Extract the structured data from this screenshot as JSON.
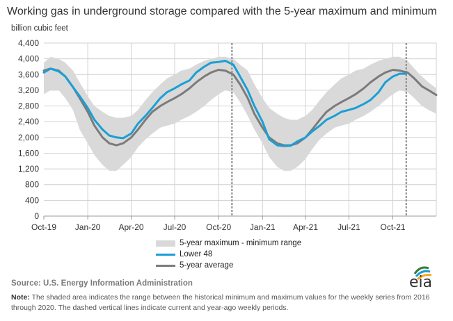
{
  "header": {
    "title": "Working gas in underground  storage compared with the 5-year maximum and minimum",
    "units": "billion cubic feet"
  },
  "legend": {
    "range_label": "5-year maximum - minimum range",
    "lower48_label": "Lower 48",
    "avg_label": "5-year average"
  },
  "footer": {
    "source": "Source:  U.S. Energy Information Administration",
    "note_label": "Note:",
    "note_text": " The shaded area indicates the range between the historical minimum and maximum values for the weekly series from 2016 through 2020. The dashed vertical lines indicate current and year-ago weekly periods.",
    "logo_text": "eia"
  },
  "colors": {
    "range": "#d9d9d9",
    "lower48": "#1a9fd5",
    "average": "#7b7b7b",
    "grid": "#d0d0d0",
    "dashed": "#888888"
  },
  "chart_data": {
    "type": "area",
    "ylabel": "billion cubic feet",
    "ylim": [
      0,
      4400
    ],
    "yticks": [
      0,
      400,
      800,
      1200,
      1600,
      2000,
      2400,
      2800,
      3200,
      3600,
      4000,
      4400
    ],
    "ytick_labels": [
      "0",
      "400",
      "800",
      "1,200",
      "1,600",
      "2,000",
      "2,400",
      "2,800",
      "3,200",
      "3,600",
      "4,000",
      "4,400"
    ],
    "xlim": [
      "2019-10-01",
      "2021-12-31"
    ],
    "xticks": [
      "2019-10-01",
      "2020-01-01",
      "2020-04-01",
      "2020-07-01",
      "2020-10-01",
      "2021-01-01",
      "2021-04-01",
      "2021-07-01",
      "2021-10-01"
    ],
    "xtick_labels": [
      "Oct-19",
      "Jan-20",
      "Apr-20",
      "Jul-20",
      "Oct-20",
      "Jan-21",
      "Apr-21",
      "Jul-21",
      "Oct-21"
    ],
    "grid": true,
    "legend_position": "bottom-center",
    "dashed_lines": [
      "2020-10-29",
      "2021-10-29"
    ],
    "series": [
      {
        "name": "5-year maximum - minimum range",
        "kind": "band",
        "x": [
          "2019-10-01",
          "2019-10-15",
          "2019-11-01",
          "2019-11-15",
          "2019-12-01",
          "2019-12-15",
          "2020-01-01",
          "2020-01-15",
          "2020-02-01",
          "2020-02-15",
          "2020-03-01",
          "2020-03-15",
          "2020-04-01",
          "2020-04-15",
          "2020-05-01",
          "2020-05-15",
          "2020-06-01",
          "2020-06-15",
          "2020-07-01",
          "2020-07-15",
          "2020-08-01",
          "2020-08-15",
          "2020-09-01",
          "2020-09-15",
          "2020-10-01",
          "2020-10-15",
          "2020-11-01",
          "2020-11-15",
          "2020-12-01",
          "2020-12-15",
          "2021-01-01",
          "2021-01-15",
          "2021-02-01",
          "2021-02-15",
          "2021-03-01",
          "2021-03-15",
          "2021-04-01",
          "2021-04-15",
          "2021-05-01",
          "2021-05-15",
          "2021-06-01",
          "2021-06-15",
          "2021-07-01",
          "2021-07-15",
          "2021-08-01",
          "2021-08-15",
          "2021-09-01",
          "2021-09-15",
          "2021-10-01",
          "2021-10-15",
          "2021-11-01",
          "2021-11-15",
          "2021-12-01",
          "2021-12-15",
          "2021-12-31"
        ],
        "min": [
          3100,
          3200,
          3200,
          3000,
          2700,
          2200,
          1850,
          1550,
          1300,
          1150,
          1150,
          1300,
          1500,
          1750,
          1950,
          2100,
          2250,
          2300,
          2350,
          2450,
          2550,
          2650,
          2800,
          2950,
          3100,
          3200,
          3150,
          2900,
          2550,
          2200,
          1850,
          1500,
          1250,
          1150,
          1150,
          1250,
          1450,
          1700,
          1950,
          2100,
          2250,
          2300,
          2350,
          2450,
          2550,
          2650,
          2800,
          2950,
          3100,
          3200,
          3150,
          3000,
          2800,
          2700,
          2600
        ],
        "max": [
          3900,
          4050,
          4000,
          3900,
          3700,
          3400,
          3050,
          2800,
          2650,
          2550,
          2500,
          2500,
          2550,
          2700,
          2950,
          3150,
          3350,
          3500,
          3600,
          3700,
          3750,
          3850,
          3950,
          4000,
          4050,
          4050,
          4000,
          3850,
          3700,
          3350,
          3000,
          2750,
          2600,
          2500,
          2450,
          2450,
          2550,
          2700,
          2950,
          3150,
          3350,
          3500,
          3600,
          3700,
          3750,
          3850,
          3950,
          4000,
          4050,
          4050,
          3950,
          3750,
          3550,
          3400,
          3250
        ]
      },
      {
        "name": "Lower 48",
        "kind": "line",
        "x": [
          "2019-10-01",
          "2019-10-15",
          "2019-11-01",
          "2019-11-15",
          "2019-12-01",
          "2019-12-15",
          "2020-01-01",
          "2020-01-15",
          "2020-02-01",
          "2020-02-15",
          "2020-03-01",
          "2020-03-15",
          "2020-04-01",
          "2020-04-15",
          "2020-05-01",
          "2020-05-15",
          "2020-06-01",
          "2020-06-15",
          "2020-07-01",
          "2020-07-15",
          "2020-08-01",
          "2020-08-15",
          "2020-09-01",
          "2020-09-15",
          "2020-10-01",
          "2020-10-15",
          "2020-11-01",
          "2020-11-15",
          "2020-12-01",
          "2020-12-15",
          "2021-01-01",
          "2021-01-15",
          "2021-02-01",
          "2021-02-15",
          "2021-03-01",
          "2021-03-15",
          "2021-04-01",
          "2021-04-15",
          "2021-05-01",
          "2021-05-15",
          "2021-06-01",
          "2021-06-15",
          "2021-07-01",
          "2021-07-15",
          "2021-08-01",
          "2021-08-15",
          "2021-09-01",
          "2021-09-15",
          "2021-10-01",
          "2021-10-15",
          "2021-10-29"
        ],
        "values": [
          3650,
          3750,
          3680,
          3550,
          3280,
          3050,
          2750,
          2450,
          2200,
          2050,
          2000,
          1980,
          2100,
          2350,
          2550,
          2750,
          3000,
          3150,
          3250,
          3350,
          3450,
          3650,
          3800,
          3900,
          3920,
          3950,
          3850,
          3550,
          3200,
          2800,
          2400,
          1950,
          1800,
          1780,
          1790,
          1900,
          2000,
          2150,
          2300,
          2450,
          2550,
          2650,
          2700,
          2750,
          2850,
          2950,
          3150,
          3400,
          3550,
          3620,
          3620
        ]
      },
      {
        "name": "5-year average",
        "kind": "line",
        "x": [
          "2019-10-01",
          "2019-10-15",
          "2019-11-01",
          "2019-11-15",
          "2019-12-01",
          "2019-12-15",
          "2020-01-01",
          "2020-01-15",
          "2020-02-01",
          "2020-02-15",
          "2020-03-01",
          "2020-03-15",
          "2020-04-01",
          "2020-04-15",
          "2020-05-01",
          "2020-05-15",
          "2020-06-01",
          "2020-06-15",
          "2020-07-01",
          "2020-07-15",
          "2020-08-01",
          "2020-08-15",
          "2020-09-01",
          "2020-09-15",
          "2020-10-01",
          "2020-10-15",
          "2020-11-01",
          "2020-11-15",
          "2020-12-01",
          "2020-12-15",
          "2021-01-01",
          "2021-01-15",
          "2021-02-01",
          "2021-02-15",
          "2021-03-01",
          "2021-03-15",
          "2021-04-01",
          "2021-04-15",
          "2021-05-01",
          "2021-05-15",
          "2021-06-01",
          "2021-06-15",
          "2021-07-01",
          "2021-07-15",
          "2021-08-01",
          "2021-08-15",
          "2021-09-01",
          "2021-09-15",
          "2021-10-01",
          "2021-10-15",
          "2021-11-01",
          "2021-11-15",
          "2021-12-01",
          "2021-12-15",
          "2021-12-31"
        ],
        "values": [
          3700,
          3750,
          3700,
          3550,
          3280,
          3000,
          2650,
          2300,
          2000,
          1850,
          1800,
          1850,
          2000,
          2200,
          2450,
          2650,
          2800,
          2900,
          3000,
          3100,
          3250,
          3400,
          3550,
          3650,
          3720,
          3700,
          3600,
          3350,
          3000,
          2600,
          2250,
          2000,
          1850,
          1800,
          1800,
          1850,
          2000,
          2200,
          2450,
          2650,
          2800,
          2900,
          3000,
          3100,
          3250,
          3400,
          3550,
          3650,
          3720,
          3700,
          3650,
          3500,
          3300,
          3200,
          3080
        ]
      }
    ]
  }
}
